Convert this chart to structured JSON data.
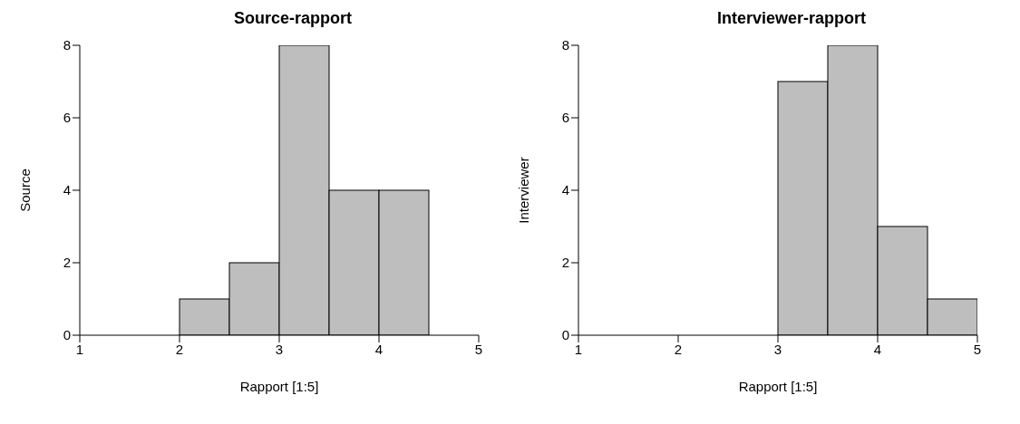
{
  "chart_data": [
    {
      "type": "histogram",
      "title": "Source-rapport",
      "xlabel": "Rapport [1:5]",
      "ylabel": "Source",
      "bins": [
        2,
        2.5,
        3,
        3.5,
        4,
        4.5
      ],
      "values": [
        1,
        2,
        8,
        4,
        4
      ],
      "color": "#bebebe",
      "xlim": [
        1,
        5
      ],
      "xticks": [
        1,
        2,
        3,
        4,
        5
      ],
      "ylim": [
        0,
        8
      ],
      "yticks": [
        0,
        2,
        4,
        6,
        8
      ]
    },
    {
      "type": "histogram",
      "title": "Interviewer-rapport",
      "xlabel": "Rapport [1:5]",
      "ylabel": "Interviewer",
      "bins": [
        3,
        3.5,
        4,
        4.5,
        5
      ],
      "values": [
        7,
        8,
        3,
        1
      ],
      "color": "#bebebe",
      "xlim": [
        1,
        5
      ],
      "xticks": [
        1,
        2,
        3,
        4,
        5
      ],
      "ylim": [
        0,
        8
      ],
      "yticks": [
        0,
        2,
        4,
        6,
        8
      ]
    }
  ]
}
